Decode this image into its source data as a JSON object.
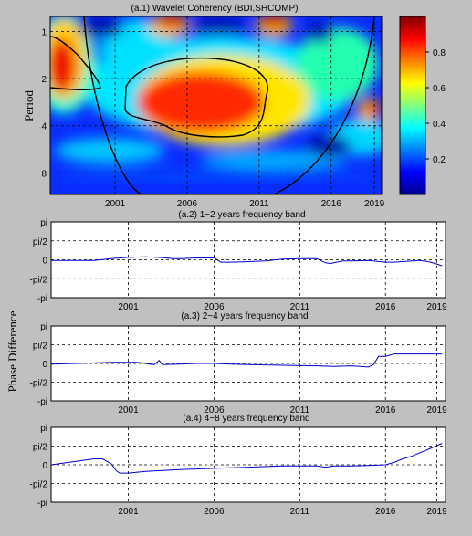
{
  "chart_data": [
    {
      "id": "a1",
      "type": "heatmap",
      "title": "(a.1)  Wavelet Coherency (BDI,SHCOMP)",
      "ylabel": "Period",
      "y_scale": "log2",
      "y_reversed": true,
      "ylim": [
        0.8,
        11
      ],
      "xlim": [
        1996.5,
        2019.5
      ],
      "x_ticks": [
        2001,
        2006,
        2011,
        2016,
        2019
      ],
      "y_ticks": [
        1,
        2,
        4,
        8
      ],
      "grid": true,
      "colorbar": {
        "ticks": [
          0.2,
          0.4,
          0.6,
          0.8
        ],
        "range": [
          0,
          1
        ],
        "colormap": "jet",
        "placement": "right"
      },
      "significant_regions": [
        {
          "t0": 2003.7,
          "t1": 2010.6,
          "p0": 2.3,
          "p1": 5.1
        },
        {
          "t0": 1996.5,
          "t1": 1999.0,
          "p0": 1.15,
          "p1": 2.6
        }
      ],
      "cone_of_influence": true
    },
    {
      "id": "a2",
      "type": "line",
      "title": "(a.2)  1~2 years frequency band",
      "ylabel": "",
      "xlim": [
        1996.5,
        2019.5
      ],
      "x_ticks": [
        2001,
        2006,
        2011,
        2016,
        2019
      ],
      "y_ticks": [
        "pi",
        "pi/2",
        "0",
        "-pi/2",
        "-pi"
      ],
      "ylim": [
        -3.1416,
        3.1416
      ],
      "grid": true,
      "series": [
        {
          "color": "#0000cc",
          "x": [
            1996.5,
            1998.0,
            1999.0,
            2000.0,
            2001.0,
            2002.0,
            2003.0,
            2003.6,
            2004.0,
            2005.0,
            2006.0,
            2006.4,
            2007.0,
            2008.0,
            2009.0,
            2010.0,
            2011.0,
            2012.0,
            2012.5,
            2012.8,
            2013.5,
            2014.0,
            2015.0,
            2016.0,
            2016.5,
            2017.0,
            2018.0,
            2018.5,
            2019.0,
            2019.3
          ],
          "y": [
            -0.05,
            -0.05,
            -0.05,
            0.1,
            0.2,
            0.25,
            0.18,
            0.1,
            0.1,
            0.15,
            0.15,
            -0.2,
            -0.2,
            -0.15,
            -0.1,
            0.05,
            0.1,
            0.1,
            -0.25,
            -0.3,
            -0.1,
            -0.1,
            -0.05,
            -0.2,
            -0.2,
            -0.15,
            -0.05,
            -0.15,
            -0.35,
            -0.5
          ]
        }
      ]
    },
    {
      "id": "a3",
      "type": "line",
      "title": "(a.3)  2~4 years frequency band",
      "ylabel": "Phase Difference",
      "xlim": [
        1996.5,
        2019.5
      ],
      "x_ticks": [
        2001,
        2006,
        2011,
        2016,
        2019
      ],
      "y_ticks": [
        "pi",
        "pi/2",
        "0",
        "-pi/2",
        "-pi"
      ],
      "ylim": [
        -3.1416,
        3.1416
      ],
      "grid": true,
      "series": [
        {
          "color": "#0000cc",
          "x": [
            1996.5,
            1998.0,
            2000.0,
            2001.5,
            2002.5,
            2002.8,
            2003.0,
            2004.0,
            2005.0,
            2006.0,
            2007.0,
            2008.0,
            2010.0,
            2012.0,
            2013.0,
            2014.0,
            2015.0,
            2015.3,
            2015.6,
            2016.0,
            2016.5,
            2017.0,
            2018.0,
            2019.3
          ],
          "y": [
            -0.05,
            0.0,
            0.1,
            0.1,
            -0.1,
            0.25,
            -0.1,
            -0.05,
            0.0,
            0.0,
            -0.05,
            -0.1,
            -0.15,
            -0.2,
            -0.25,
            -0.2,
            -0.3,
            -0.1,
            0.6,
            0.6,
            0.8,
            0.8,
            0.8,
            0.8
          ]
        }
      ]
    },
    {
      "id": "a4",
      "type": "line",
      "title": "(a.4)  4~8 years frequency band",
      "ylabel": "",
      "xlim": [
        1996.5,
        2019.5
      ],
      "x_ticks": [
        2001,
        2006,
        2011,
        2016,
        2019
      ],
      "y_ticks": [
        "pi",
        "pi/2",
        "0",
        "-pi/2",
        "-pi"
      ],
      "ylim": [
        -3.1416,
        3.1416
      ],
      "grid": true,
      "series": [
        {
          "color": "#0000cc",
          "x": [
            1996.5,
            1998.0,
            1999.0,
            1999.5,
            2000.0,
            2000.3,
            2000.5,
            2001.0,
            2002.0,
            2004.0,
            2006.0,
            2008.0,
            2010.0,
            2012.0,
            2012.5,
            2013.0,
            2014.0,
            2015.0,
            2016.0,
            2016.5,
            2017.0,
            2017.5,
            2018.0,
            2018.5,
            2019.0,
            2019.3
          ],
          "y": [
            0.0,
            0.3,
            0.5,
            0.5,
            0.1,
            -0.5,
            -0.7,
            -0.7,
            -0.55,
            -0.4,
            -0.3,
            -0.2,
            -0.1,
            -0.1,
            -0.2,
            -0.1,
            -0.1,
            -0.05,
            0.0,
            0.2,
            0.5,
            0.7,
            1.0,
            1.3,
            1.6,
            1.8
          ]
        }
      ]
    }
  ]
}
